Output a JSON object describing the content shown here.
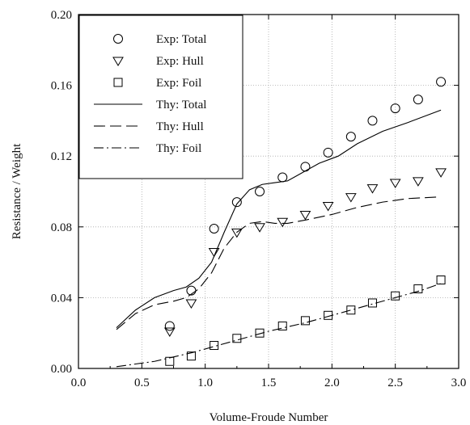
{
  "chart_data": {
    "type": "line",
    "title": "",
    "xlabel": "Volume-Froude Number",
    "ylabel": "Resistance / Weight",
    "xlim": [
      0.0,
      3.0
    ],
    "ylim": [
      0.0,
      0.2
    ],
    "xticks": [
      0.0,
      0.5,
      1.0,
      1.5,
      2.0,
      2.5,
      3.0
    ],
    "xtick_labels": [
      "0.0",
      "0.5",
      "1.0",
      "1.5",
      "2.0",
      "2.5",
      "3.0"
    ],
    "yticks": [
      0.0,
      0.04,
      0.08,
      0.12,
      0.16,
      0.2
    ],
    "ytick_labels": [
      "0.00",
      "0.04",
      "0.08",
      "0.12",
      "0.16",
      "0.20"
    ],
    "grid": "dotted",
    "legend_position": "top-left",
    "series": [
      {
        "name": "Exp: Total",
        "kind": "marker",
        "marker": "circle",
        "x": [
          0.72,
          0.89,
          1.07,
          1.25,
          1.43,
          1.61,
          1.79,
          1.97,
          2.15,
          2.32,
          2.5,
          2.68,
          2.86
        ],
        "y": [
          0.024,
          0.044,
          0.079,
          0.094,
          0.1,
          0.108,
          0.114,
          0.122,
          0.131,
          0.14,
          0.147,
          0.152,
          0.162
        ]
      },
      {
        "name": "Exp: Hull",
        "kind": "marker",
        "marker": "triangle-down",
        "x": [
          0.72,
          0.89,
          1.07,
          1.25,
          1.43,
          1.61,
          1.79,
          1.97,
          2.15,
          2.32,
          2.5,
          2.68,
          2.86
        ],
        "y": [
          0.021,
          0.037,
          0.066,
          0.077,
          0.08,
          0.083,
          0.087,
          0.092,
          0.097,
          0.102,
          0.105,
          0.106,
          0.111
        ]
      },
      {
        "name": "Exp: Foil",
        "kind": "marker",
        "marker": "square",
        "x": [
          0.72,
          0.89,
          1.07,
          1.25,
          1.43,
          1.61,
          1.79,
          1.97,
          2.15,
          2.32,
          2.5,
          2.68,
          2.86
        ],
        "y": [
          0.004,
          0.007,
          0.013,
          0.017,
          0.02,
          0.024,
          0.027,
          0.03,
          0.033,
          0.037,
          0.041,
          0.045,
          0.05
        ]
      },
      {
        "name": "Thy: Total",
        "kind": "line",
        "dash": "solid",
        "x": [
          0.3,
          0.45,
          0.6,
          0.75,
          0.85,
          0.95,
          1.05,
          1.15,
          1.25,
          1.35,
          1.45,
          1.55,
          1.65,
          1.75,
          1.9,
          2.05,
          2.2,
          2.4,
          2.6,
          2.86
        ],
        "y": [
          0.023,
          0.033,
          0.04,
          0.044,
          0.046,
          0.051,
          0.06,
          0.077,
          0.093,
          0.101,
          0.104,
          0.105,
          0.106,
          0.11,
          0.116,
          0.12,
          0.127,
          0.134,
          0.139,
          0.146
        ]
      },
      {
        "name": "Thy: Hull",
        "kind": "line",
        "dash": "long-dash",
        "x": [
          0.3,
          0.45,
          0.6,
          0.75,
          0.85,
          0.95,
          1.05,
          1.15,
          1.25,
          1.35,
          1.45,
          1.55,
          1.65,
          1.8,
          2.0,
          2.2,
          2.4,
          2.6,
          2.86
        ],
        "y": [
          0.022,
          0.031,
          0.036,
          0.038,
          0.04,
          0.045,
          0.054,
          0.068,
          0.077,
          0.082,
          0.083,
          0.082,
          0.082,
          0.084,
          0.087,
          0.091,
          0.094,
          0.096,
          0.097
        ]
      },
      {
        "name": "Thy: Foil",
        "kind": "line",
        "dash": "dash-dot",
        "x": [
          0.3,
          0.6,
          0.9,
          1.2,
          1.5,
          1.8,
          2.1,
          2.4,
          2.7,
          2.86
        ],
        "y": [
          0.001,
          0.004,
          0.009,
          0.015,
          0.021,
          0.026,
          0.032,
          0.038,
          0.044,
          0.048
        ]
      }
    ]
  }
}
